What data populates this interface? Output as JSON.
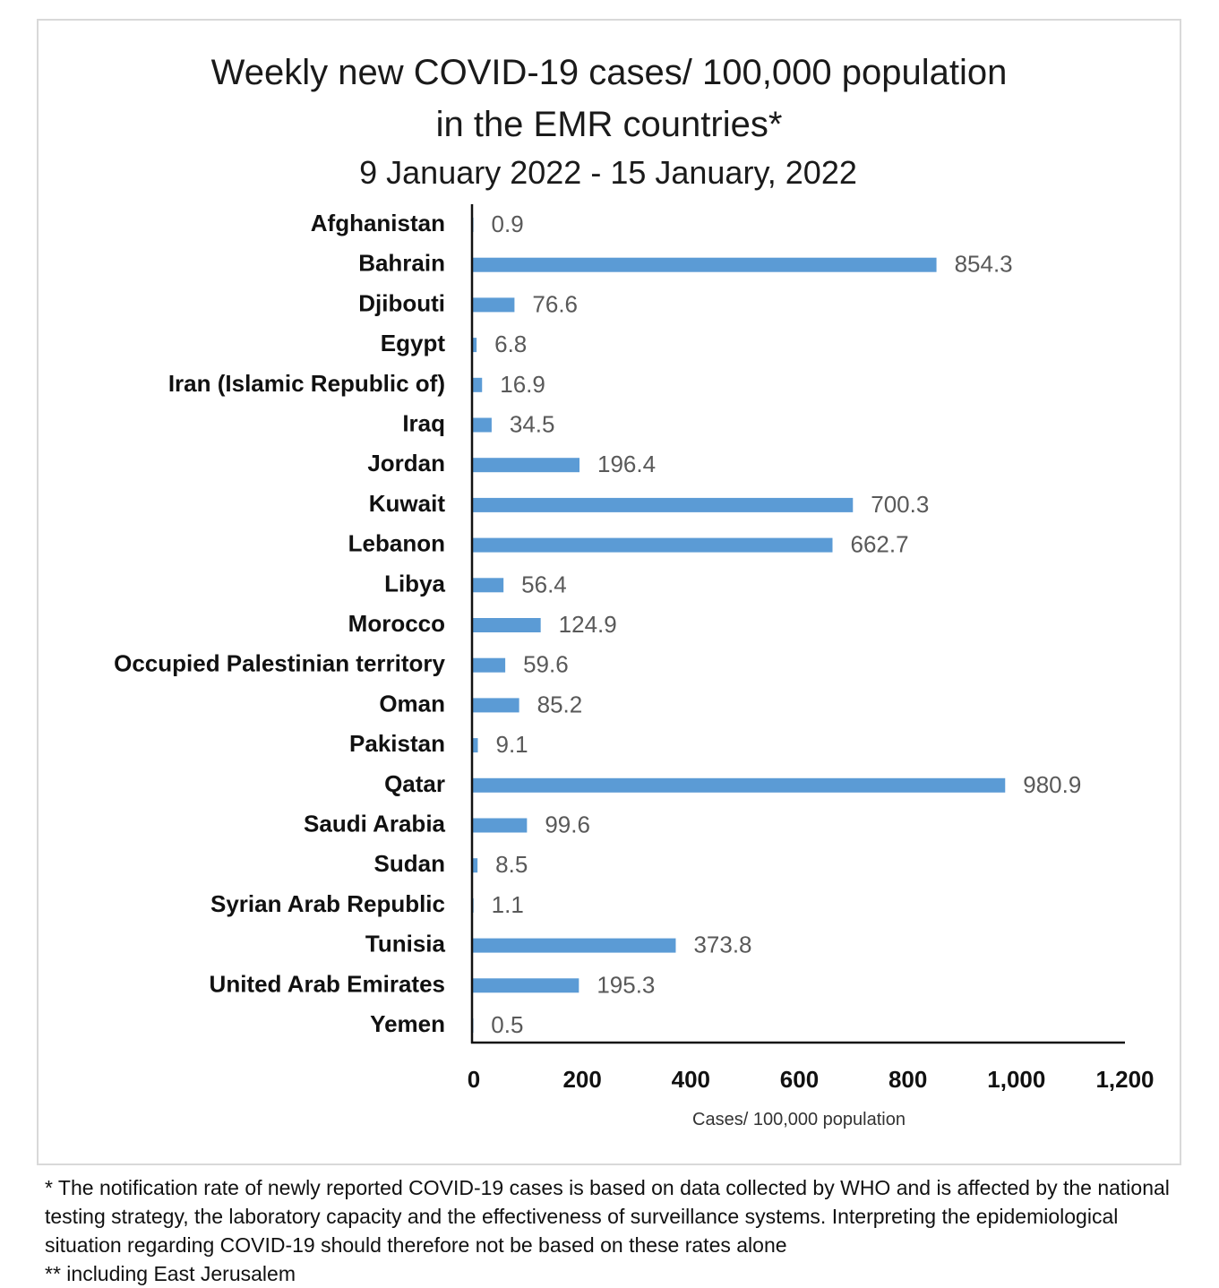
{
  "chart_data": {
    "type": "bar",
    "orientation": "horizontal",
    "title": [
      "Weekly new COVID-19 cases/ 100,000 population",
      "in the EMR countries*"
    ],
    "subtitle": "9 January 2022 - 15 January, 2022",
    "categories": [
      "Afghanistan",
      "Bahrain",
      "Djibouti",
      "Egypt",
      "Iran (Islamic Republic of)",
      "Iraq",
      "Jordan",
      "Kuwait",
      "Lebanon",
      "Libya",
      "Morocco",
      "Occupied Palestinian territory",
      "Oman",
      "Pakistan",
      "Qatar",
      "Saudi Arabia",
      "Sudan",
      "Syrian Arab Republic",
      "Tunisia",
      "United Arab Emirates",
      "Yemen"
    ],
    "values": [
      0.9,
      854.3,
      76.6,
      6.8,
      16.9,
      34.5,
      196.4,
      700.3,
      662.7,
      56.4,
      124.9,
      59.6,
      85.2,
      9.1,
      980.9,
      99.6,
      8.5,
      1.1,
      373.8,
      195.3,
      0.5
    ],
    "value_labels": [
      "0.9",
      "854.3",
      "76.6",
      "6.8",
      "16.9",
      "34.5",
      "196.4",
      "700.3",
      "662.7",
      "56.4",
      "124.9",
      "59.6",
      "85.2",
      "9.1",
      "980.9",
      "99.6",
      "8.5",
      "1.1",
      "373.8",
      "195.3",
      "0.5"
    ],
    "xlabel": "Cases/ 100,000 population",
    "ylabel": "",
    "xlim": [
      0,
      1200
    ],
    "xticks": [
      0,
      200,
      400,
      600,
      800,
      1000,
      1200
    ],
    "xtick_labels": [
      "0",
      "200",
      "400",
      "600",
      "800",
      "1,000",
      "1,200"
    ],
    "grid": false,
    "bar_color": "#5B9BD5"
  },
  "footnotes": [
    "* The notification rate of newly reported COVID-19 cases is based on data collected by WHO and is affected by the national testing strategy, the laboratory capacity and the effectiveness of surveillance systems. Interpreting the epidemiological situation regarding COVID-19 should therefore not be based on these rates alone",
    "** including East Jerusalem"
  ]
}
